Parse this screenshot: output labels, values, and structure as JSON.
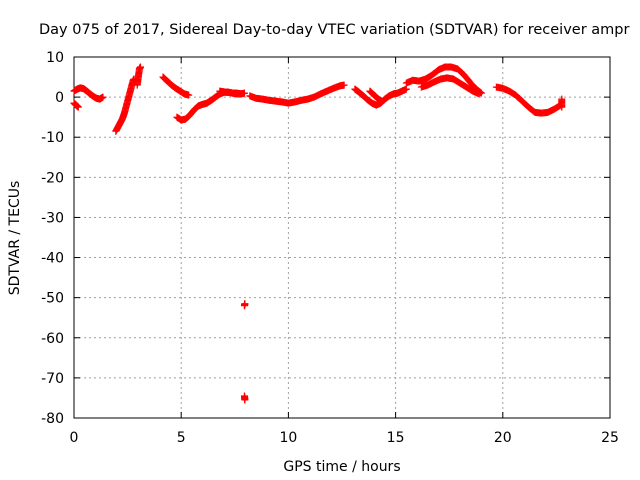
{
  "chart_data": {
    "type": "scatter",
    "title": "Day 075 of 2017, Sidereal Day-to-day VTEC variation (SDTVAR) for receiver ampr",
    "xlabel": "GPS time / hours",
    "ylabel": "SDTVAR / TECUs",
    "xlim": [
      0,
      25
    ],
    "ylim": [
      -80,
      10
    ],
    "xticks": [
      0,
      5,
      10,
      15,
      20,
      25
    ],
    "yticks": [
      10,
      0,
      -10,
      -20,
      -30,
      -40,
      -50,
      -60,
      -70,
      -80
    ],
    "grid": true,
    "marker": "+",
    "color": "#ff0000",
    "series": [
      {
        "name": "SDTVAR",
        "segments": [
          [
            [
              0.0,
              1.5
            ],
            [
              0.15,
              2.0
            ],
            [
              0.3,
              2.3
            ],
            [
              0.45,
              2.1
            ],
            [
              0.6,
              1.5
            ],
            [
              0.75,
              0.8
            ],
            [
              0.9,
              0.2
            ],
            [
              1.05,
              -0.3
            ],
            [
              1.2,
              -0.5
            ],
            [
              1.35,
              0.0
            ]
          ],
          [
            [
              0.0,
              -1.5
            ],
            [
              0.1,
              -2.0
            ],
            [
              0.2,
              -2.5
            ]
          ],
          [
            [
              1.95,
              -8.5
            ],
            [
              2.05,
              -7.5
            ],
            [
              2.15,
              -6.5
            ],
            [
              2.25,
              -5.5
            ],
            [
              2.35,
              -4.0
            ],
            [
              2.45,
              -2.0
            ],
            [
              2.55,
              0.0
            ],
            [
              2.65,
              2.0
            ],
            [
              2.75,
              4.0
            ],
            [
              2.8,
              4.5
            ]
          ],
          [
            [
              2.95,
              3.0
            ],
            [
              3.0,
              5.0
            ],
            [
              3.05,
              7.0
            ],
            [
              3.1,
              7.5
            ]
          ],
          [
            [
              4.15,
              5.0
            ],
            [
              4.35,
              4.0
            ],
            [
              4.55,
              3.0
            ],
            [
              4.75,
              2.2
            ],
            [
              4.95,
              1.5
            ],
            [
              5.15,
              0.8
            ],
            [
              5.35,
              0.5
            ]
          ],
          [
            [
              4.8,
              -5.0
            ],
            [
              5.0,
              -5.7
            ],
            [
              5.2,
              -5.5
            ],
            [
              5.4,
              -4.5
            ],
            [
              5.6,
              -3.2
            ],
            [
              5.8,
              -2.2
            ],
            [
              6.0,
              -1.8
            ],
            [
              6.2,
              -1.5
            ],
            [
              6.4,
              -0.8
            ],
            [
              6.6,
              0.0
            ],
            [
              6.8,
              0.8
            ],
            [
              7.0,
              1.2
            ],
            [
              7.2,
              1.2
            ],
            [
              7.4,
              1.0
            ],
            [
              7.6,
              0.8
            ],
            [
              7.8,
              0.8
            ],
            [
              7.95,
              1.0
            ]
          ],
          [
            [
              6.8,
              1.5
            ],
            [
              7.0,
              1.3
            ],
            [
              7.2,
              1.2
            ],
            [
              7.4,
              1.0
            ],
            [
              7.6,
              1.0
            ],
            [
              7.8,
              0.8
            ]
          ],
          [
            [
              7.95,
              -52.0
            ],
            [
              7.97,
              -51.5
            ]
          ],
          [
            [
              7.95,
              -74.5
            ],
            [
              7.97,
              -75.5
            ]
          ],
          [
            [
              8.2,
              0.3
            ],
            [
              8.5,
              -0.3
            ],
            [
              8.8,
              -0.5
            ],
            [
              9.1,
              -0.8
            ],
            [
              9.4,
              -1.0
            ],
            [
              9.7,
              -1.2
            ],
            [
              10.0,
              -1.5
            ],
            [
              10.3,
              -1.2
            ],
            [
              10.6,
              -0.8
            ],
            [
              10.9,
              -0.5
            ],
            [
              11.2,
              0.0
            ],
            [
              11.5,
              0.8
            ],
            [
              11.8,
              1.5
            ],
            [
              12.1,
              2.2
            ],
            [
              12.4,
              2.8
            ],
            [
              12.6,
              3.0
            ]
          ],
          [
            [
              13.1,
              2.0
            ],
            [
              13.3,
              1.2
            ],
            [
              13.5,
              0.3
            ],
            [
              13.7,
              -0.7
            ],
            [
              13.9,
              -1.5
            ],
            [
              14.1,
              -2.0
            ],
            [
              14.3,
              -1.5
            ],
            [
              14.5,
              -0.5
            ],
            [
              14.7,
              0.3
            ],
            [
              14.9,
              0.8
            ],
            [
              15.1,
              1.0
            ],
            [
              15.3,
              1.5
            ],
            [
              15.5,
              2.0
            ]
          ],
          [
            [
              13.8,
              1.5
            ],
            [
              14.0,
              0.5
            ],
            [
              14.2,
              -0.5
            ],
            [
              14.35,
              -1.0
            ]
          ],
          [
            [
              15.5,
              3.5
            ],
            [
              15.8,
              4.2
            ],
            [
              16.1,
              4.0
            ],
            [
              16.4,
              4.5
            ],
            [
              16.7,
              5.5
            ],
            [
              17.0,
              6.8
            ],
            [
              17.3,
              7.5
            ],
            [
              17.6,
              7.5
            ],
            [
              17.9,
              7.0
            ],
            [
              18.2,
              5.5
            ],
            [
              18.5,
              3.5
            ],
            [
              18.8,
              1.8
            ],
            [
              19.0,
              1.0
            ]
          ],
          [
            [
              16.2,
              2.5
            ],
            [
              16.5,
              3.0
            ],
            [
              16.8,
              3.8
            ],
            [
              17.1,
              4.5
            ],
            [
              17.4,
              4.8
            ],
            [
              17.7,
              4.5
            ],
            [
              18.0,
              3.5
            ],
            [
              18.3,
              2.5
            ],
            [
              18.6,
              1.5
            ],
            [
              18.9,
              0.8
            ]
          ],
          [
            [
              19.7,
              2.5
            ],
            [
              20.0,
              2.2
            ],
            [
              20.3,
              1.5
            ],
            [
              20.6,
              0.5
            ],
            [
              20.9,
              -1.0
            ],
            [
              21.2,
              -2.5
            ],
            [
              21.5,
              -3.8
            ],
            [
              21.8,
              -4.0
            ],
            [
              22.1,
              -3.8
            ],
            [
              22.4,
              -3.0
            ],
            [
              22.7,
              -2.0
            ]
          ],
          [
            [
              22.75,
              -0.5
            ],
            [
              22.75,
              -2.5
            ]
          ]
        ]
      }
    ]
  }
}
